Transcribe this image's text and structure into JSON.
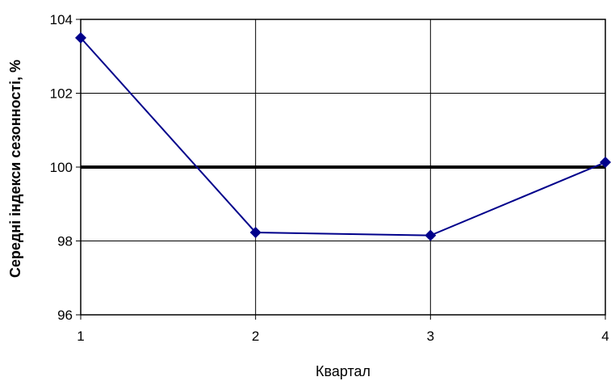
{
  "chart_data": {
    "type": "line",
    "title": "",
    "xlabel": "Квартал",
    "ylabel": "Середні індекси сезонності, %",
    "x": [
      1,
      2,
      3,
      4
    ],
    "xticks": [
      "1",
      "2",
      "3",
      "4"
    ],
    "yticks": [
      "96",
      "98",
      "100",
      "102",
      "104"
    ],
    "xlim": [
      1,
      4
    ],
    "ylim": [
      96,
      104
    ],
    "grid": true,
    "reference_line": {
      "y": 100
    },
    "series": [
      {
        "values": [
          103.5,
          98.23,
          98.15,
          100.13
        ],
        "color": "#00008B",
        "marker": "diamond"
      }
    ]
  }
}
